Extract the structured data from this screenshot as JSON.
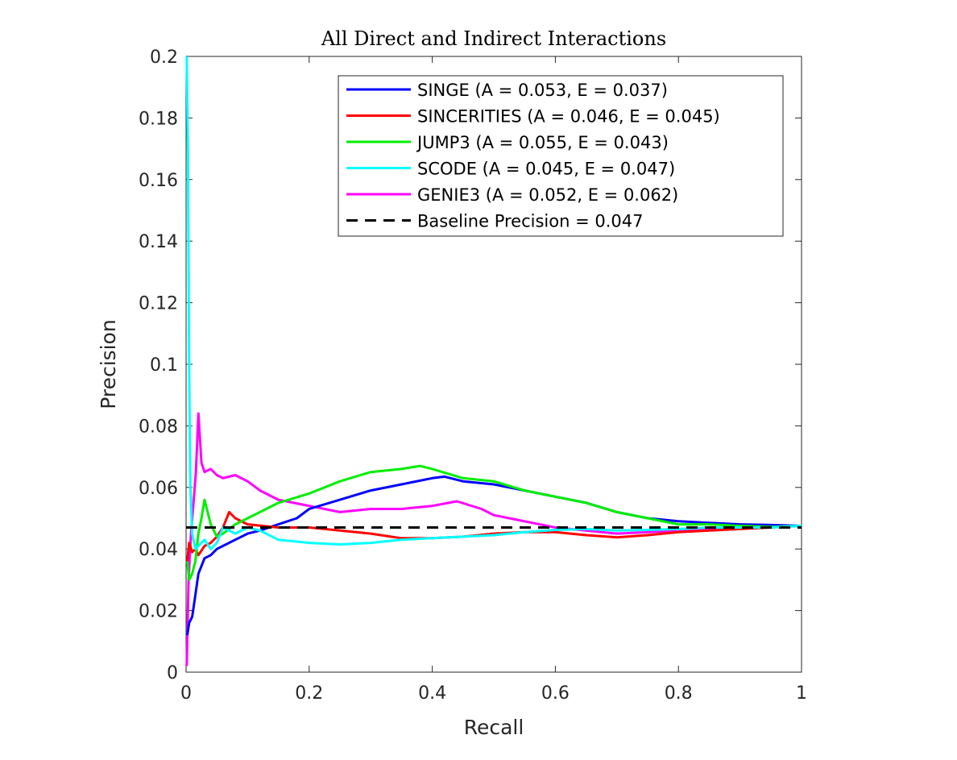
{
  "chart_data": {
    "type": "line",
    "title": "All Direct and Indirect Interactions",
    "xlabel": "Recall",
    "ylabel": "Precision",
    "xlim": [
      0,
      1
    ],
    "ylim": [
      0,
      0.2
    ],
    "x_ticks": [
      "0",
      "0.2",
      "0.4",
      "0.6",
      "0.8",
      "1"
    ],
    "y_ticks": [
      "0",
      "0.02",
      "0.04",
      "0.06",
      "0.08",
      "0.1",
      "0.12",
      "0.14",
      "0.16",
      "0.18",
      "0.2"
    ],
    "grid": false,
    "legend_position": "top-right",
    "series": [
      {
        "name": "SINGE (A = 0.053, E = 0.037)",
        "color": "#0000ff",
        "dash": false,
        "x": [
          0.002,
          0.005,
          0.01,
          0.015,
          0.02,
          0.03,
          0.04,
          0.05,
          0.06,
          0.08,
          0.1,
          0.12,
          0.15,
          0.18,
          0.2,
          0.25,
          0.3,
          0.35,
          0.4,
          0.42,
          0.45,
          0.5,
          0.55,
          0.6,
          0.65,
          0.7,
          0.75,
          0.8,
          0.85,
          0.9,
          0.95,
          1.0
        ],
        "y": [
          0.012,
          0.016,
          0.018,
          0.025,
          0.032,
          0.037,
          0.038,
          0.04,
          0.041,
          0.043,
          0.045,
          0.046,
          0.048,
          0.05,
          0.053,
          0.056,
          0.059,
          0.061,
          0.063,
          0.0635,
          0.062,
          0.061,
          0.059,
          0.057,
          0.055,
          0.052,
          0.05,
          0.049,
          0.0485,
          0.048,
          0.0478,
          0.0475
        ]
      },
      {
        "name": "SINCERITIES (A = 0.046, E = 0.045)",
        "color": "#ff0000",
        "dash": false,
        "x": [
          0.002,
          0.005,
          0.01,
          0.015,
          0.02,
          0.03,
          0.04,
          0.05,
          0.06,
          0.07,
          0.08,
          0.1,
          0.15,
          0.2,
          0.25,
          0.3,
          0.35,
          0.4,
          0.45,
          0.5,
          0.55,
          0.6,
          0.65,
          0.7,
          0.75,
          0.8,
          0.85,
          0.9,
          0.95,
          1.0
        ],
        "y": [
          0.036,
          0.042,
          0.039,
          0.04,
          0.038,
          0.041,
          0.042,
          0.044,
          0.047,
          0.052,
          0.05,
          0.048,
          0.047,
          0.047,
          0.046,
          0.045,
          0.0435,
          0.0435,
          0.044,
          0.045,
          0.0455,
          0.0455,
          0.0445,
          0.0438,
          0.0445,
          0.0455,
          0.046,
          0.0465,
          0.047,
          0.0475
        ]
      },
      {
        "name": "JUMP3 (A = 0.055, E = 0.043)",
        "color": "#00ee00",
        "dash": false,
        "x": [
          0.002,
          0.005,
          0.01,
          0.015,
          0.02,
          0.025,
          0.03,
          0.04,
          0.05,
          0.06,
          0.08,
          0.1,
          0.12,
          0.15,
          0.2,
          0.25,
          0.3,
          0.35,
          0.38,
          0.4,
          0.45,
          0.5,
          0.55,
          0.6,
          0.65,
          0.7,
          0.75,
          0.8,
          0.85,
          0.9,
          0.95,
          1.0
        ],
        "y": [
          0.036,
          0.03,
          0.032,
          0.036,
          0.045,
          0.05,
          0.056,
          0.048,
          0.044,
          0.045,
          0.048,
          0.05,
          0.052,
          0.055,
          0.058,
          0.062,
          0.065,
          0.066,
          0.067,
          0.066,
          0.063,
          0.062,
          0.059,
          0.057,
          0.055,
          0.052,
          0.05,
          0.048,
          0.048,
          0.0475,
          0.0472,
          0.0475
        ]
      },
      {
        "name": "SCODE (A = 0.045, E = 0.047)",
        "color": "#00ffff",
        "dash": false,
        "x": [
          0.001,
          0.003,
          0.005,
          0.007,
          0.01,
          0.015,
          0.02,
          0.03,
          0.04,
          0.05,
          0.06,
          0.08,
          0.1,
          0.12,
          0.15,
          0.2,
          0.25,
          0.3,
          0.35,
          0.4,
          0.45,
          0.5,
          0.55,
          0.6,
          0.65,
          0.7,
          0.75,
          0.8,
          0.85,
          0.9,
          0.95,
          1.0
        ],
        "y": [
          0.2,
          0.17,
          0.1,
          0.06,
          0.045,
          0.04,
          0.041,
          0.043,
          0.04,
          0.042,
          0.047,
          0.045,
          0.047,
          0.046,
          0.043,
          0.042,
          0.0415,
          0.042,
          0.043,
          0.0435,
          0.044,
          0.0445,
          0.0455,
          0.0462,
          0.0465,
          0.046,
          0.0462,
          0.0465,
          0.047,
          0.047,
          0.047,
          0.0475
        ]
      },
      {
        "name": "GENIE3 (A = 0.052, E = 0.062)",
        "color": "#ff00ff",
        "dash": false,
        "x": [
          0.001,
          0.004,
          0.008,
          0.012,
          0.016,
          0.02,
          0.025,
          0.03,
          0.04,
          0.05,
          0.06,
          0.08,
          0.1,
          0.12,
          0.15,
          0.2,
          0.25,
          0.3,
          0.35,
          0.4,
          0.44,
          0.48,
          0.5,
          0.55,
          0.6,
          0.65,
          0.7,
          0.75,
          0.8,
          0.85,
          0.9,
          0.95,
          1.0
        ],
        "y": [
          0.002,
          0.03,
          0.045,
          0.055,
          0.065,
          0.084,
          0.068,
          0.065,
          0.066,
          0.064,
          0.063,
          0.064,
          0.062,
          0.059,
          0.056,
          0.054,
          0.052,
          0.053,
          0.053,
          0.054,
          0.0555,
          0.053,
          0.051,
          0.049,
          0.047,
          0.046,
          0.045,
          0.0455,
          0.046,
          0.0465,
          0.047,
          0.0472,
          0.0475
        ]
      },
      {
        "name": "Baseline Precision = 0.047",
        "color": "#000000",
        "dash": true,
        "x": [
          0,
          1
        ],
        "y": [
          0.047,
          0.047
        ]
      }
    ]
  }
}
